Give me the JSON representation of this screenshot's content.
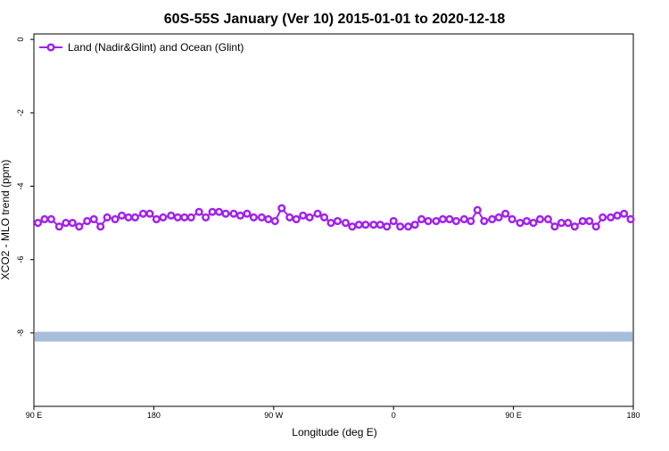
{
  "chart_data": {
    "type": "line",
    "title": "60S-55S January (Ver 10)   2015-01-01 to 2020-12-18",
    "xlabel": "Longitude (deg E)",
    "ylabel": "XCO2 - MLO trend (ppm)",
    "xlim": [
      90,
      540
    ],
    "ylim": [
      -10,
      0.15
    ],
    "xticks": [
      {
        "value": 90,
        "label": "90 E"
      },
      180,
      {
        "value": 270,
        "label": "90 W"
      },
      {
        "value": 360,
        "label": "0"
      },
      {
        "value": 450,
        "label": "90 E"
      },
      {
        "value": 540,
        "label": "180"
      }
    ],
    "yticks": [
      0,
      -2,
      -4,
      -6,
      -8
    ],
    "legend": "top-left",
    "band": {
      "y": -8.1,
      "color": "#a6bddb"
    },
    "x": [
      93,
      98,
      103,
      109,
      114,
      119,
      124,
      130,
      135,
      140,
      145,
      151,
      156,
      161,
      166,
      172,
      177,
      182,
      187,
      193,
      198,
      203,
      208,
      214,
      219,
      224,
      229,
      234,
      240,
      245,
      250,
      255,
      261,
      266,
      271,
      276,
      282,
      287,
      292,
      297,
      303,
      308,
      313,
      318,
      324,
      329,
      334,
      339,
      345,
      350,
      355,
      360,
      365,
      371,
      376,
      381,
      386,
      392,
      397,
      402,
      407,
      413,
      418,
      423,
      428,
      434,
      439,
      444,
      449,
      455,
      460,
      465,
      470,
      476,
      481,
      486,
      491,
      496,
      502,
      507,
      512,
      517,
      523,
      528,
      533,
      538
    ],
    "series": [
      {
        "name": "Land (Nadir&Glint) and Ocean (Glint)",
        "color": "#a020f0",
        "values": [
          -5.0,
          -4.9,
          -4.9,
          -5.1,
          -5.0,
          -5.0,
          -5.1,
          -4.95,
          -4.9,
          -5.1,
          -4.85,
          -4.9,
          -4.8,
          -4.85,
          -4.85,
          -4.75,
          -4.75,
          -4.9,
          -4.85,
          -4.8,
          -4.85,
          -4.85,
          -4.85,
          -4.7,
          -4.85,
          -4.7,
          -4.7,
          -4.75,
          -4.75,
          -4.8,
          -4.75,
          -4.85,
          -4.85,
          -4.9,
          -4.95,
          -4.6,
          -4.85,
          -4.9,
          -4.8,
          -4.85,
          -4.75,
          -4.85,
          -5.0,
          -4.95,
          -5.0,
          -5.1,
          -5.05,
          -5.05,
          -5.05,
          -5.05,
          -5.1,
          -4.95,
          -5.1,
          -5.1,
          -5.05,
          -4.9,
          -4.95,
          -4.95,
          -4.9,
          -4.9,
          -4.95,
          -4.9,
          -4.95,
          -4.65,
          -4.95,
          -4.9,
          -4.85,
          -4.75,
          -4.9,
          -5.0,
          -4.95,
          -5.0,
          -4.9,
          -4.9,
          -5.1,
          -5.0,
          -5.0,
          -5.1,
          -4.95,
          -4.95,
          -5.1,
          -4.85,
          -4.85,
          -4.8,
          -4.75,
          -4.9
        ]
      }
    ]
  }
}
